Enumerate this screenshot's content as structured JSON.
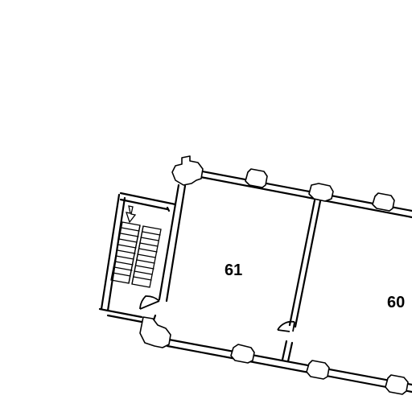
{
  "rooms": [
    {
      "id": "61",
      "label": "61"
    },
    {
      "id": "60",
      "label": "60"
    }
  ],
  "icons": {
    "stair_direction": "down-arrow-icon"
  },
  "colors": {
    "line": "#000000",
    "background": "#ffffff"
  }
}
